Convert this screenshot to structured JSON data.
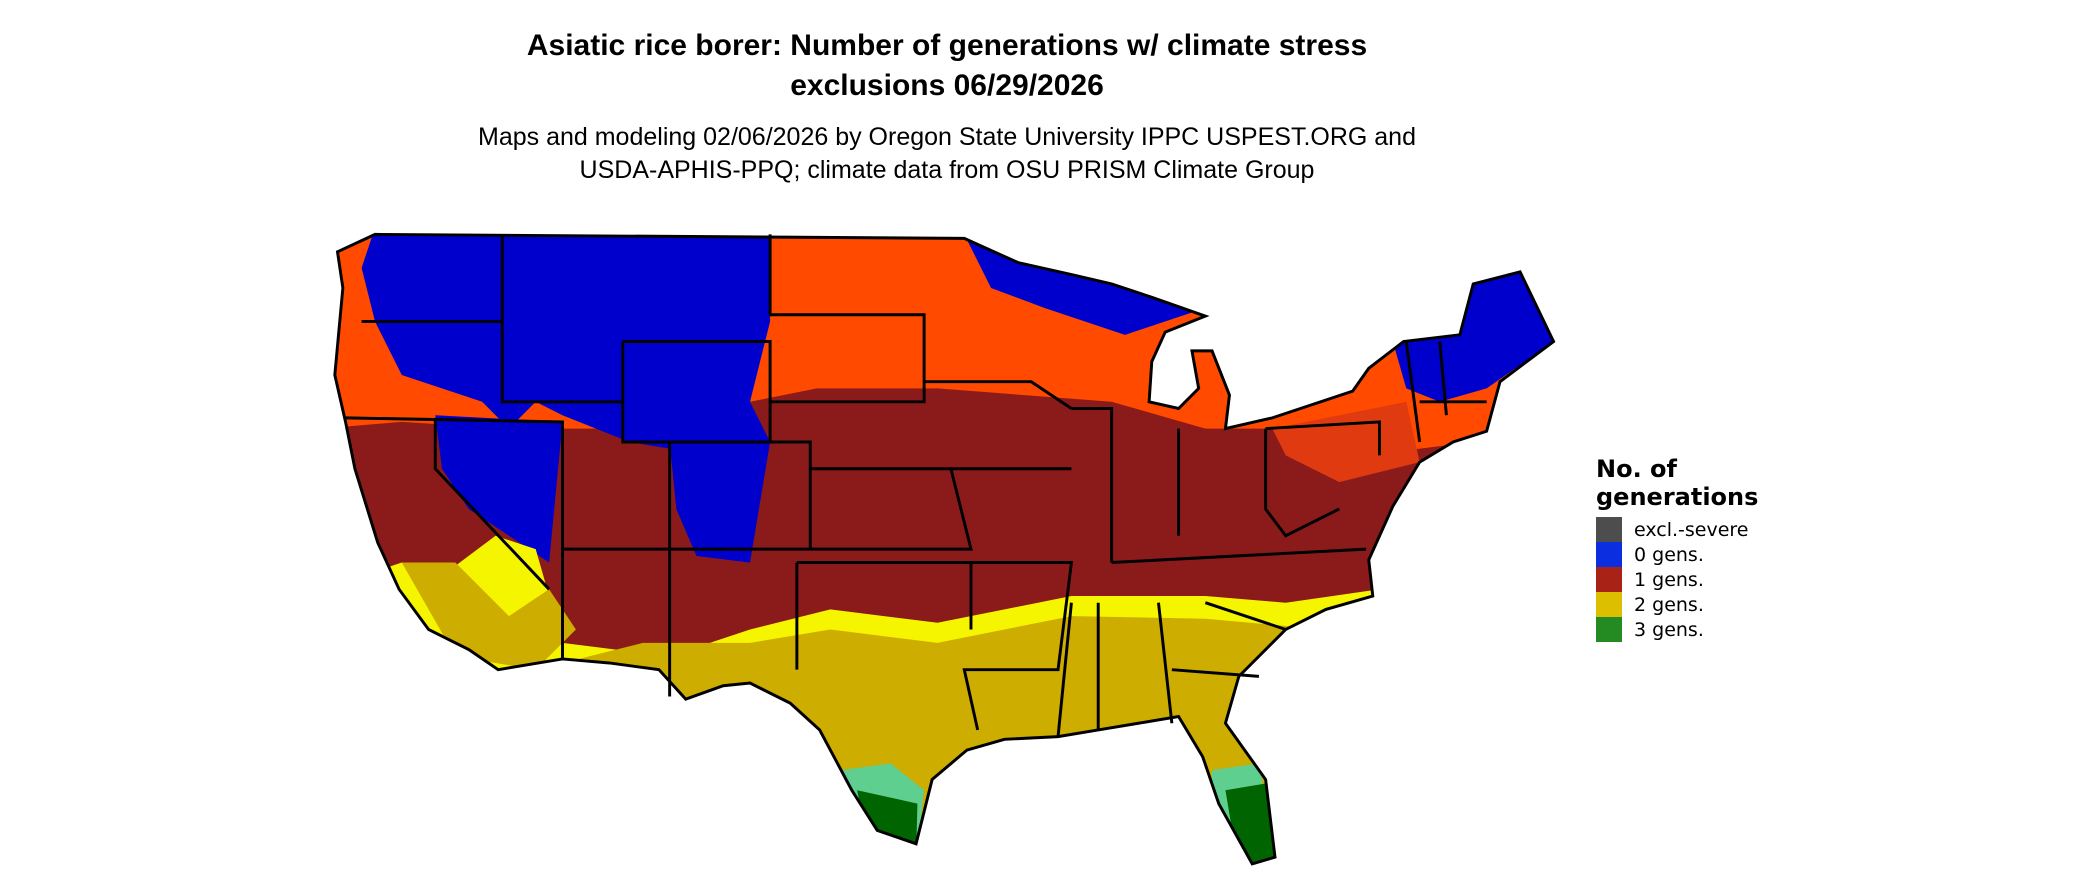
{
  "title": {
    "line1": "Asiatic rice borer: Number of generations w/ climate stress",
    "line2": "exclusions 06/29/2026"
  },
  "subtitle": {
    "line1": "Maps and modeling 02/06/2026 by Oregon State University IPPC USPEST.ORG and",
    "line2": "USDA-APHIS-PPQ; climate data from OSU PRISM Climate Group"
  },
  "map": {
    "region": "Contiguous United States",
    "colors": {
      "zero_gens": "#0000cc",
      "one_gen_light": "#ff4a00",
      "one_gen_dark": "#8b1a1a",
      "two_gens": "#ccad00",
      "two_gens_light": "#f5f500",
      "three_gens": "#006400",
      "three_gens_light": "#5fcf8f",
      "borders": "#000000"
    }
  },
  "legend": {
    "title_line1": "No. of",
    "title_line2": "generations",
    "items": [
      {
        "label": "excl.-severe",
        "color": "#4d4d4d"
      },
      {
        "label": "0 gens.",
        "color": "#0a2ee0"
      },
      {
        "label": "1 gens.",
        "color": "#a82216"
      },
      {
        "label": "2 gens.",
        "color": "#dcc000"
      },
      {
        "label": "3 gens.",
        "color": "#238b22"
      }
    ]
  }
}
